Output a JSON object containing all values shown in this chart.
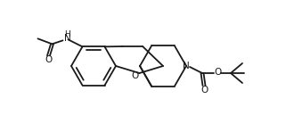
{
  "bg_color": "#ffffff",
  "line_color": "#1a1a1a",
  "line_width": 1.3,
  "figsize": [
    3.3,
    1.48
  ],
  "dpi": 100,
  "xlim": [
    0,
    330
  ],
  "ylim": [
    0,
    148
  ]
}
